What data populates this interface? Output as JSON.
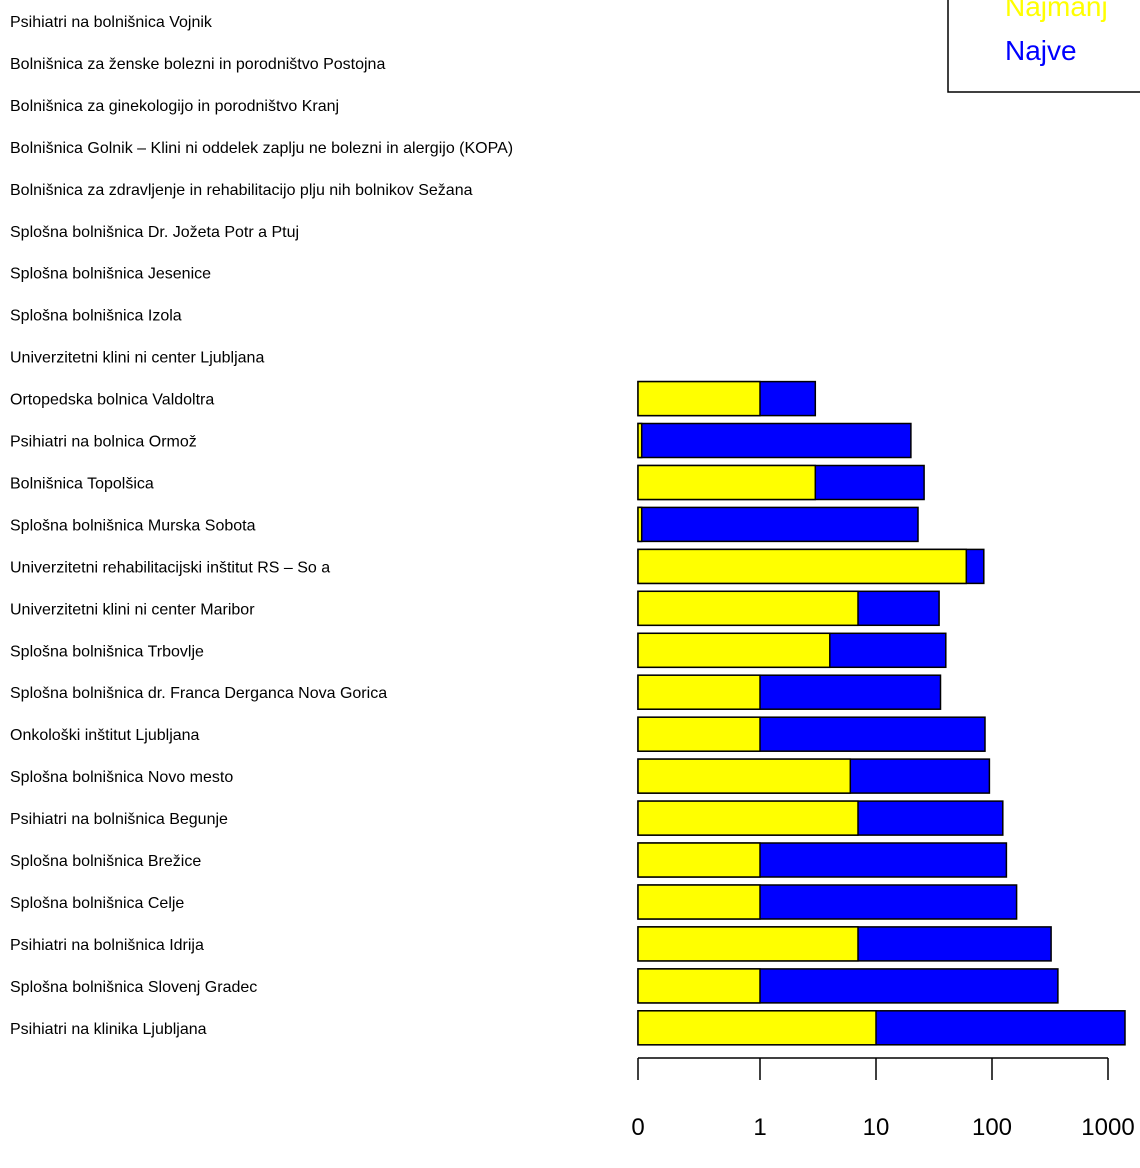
{
  "chart_data": {
    "type": "bar",
    "orientation": "horizontal",
    "stacked": true,
    "x_scale": "log (tick labels 0, 1, 10, 100, 1000)",
    "xlim": [
      0,
      1500
    ],
    "x_ticks": [
      "0",
      "1",
      "10",
      "100",
      "1000"
    ],
    "categories": [
      "Psihiatri na bolnišnica Vojnik",
      "Bolnišnica za ženske bolezni in porodništvo Postojna",
      "Bolnišnica za ginekologijo in porodništvo Kranj",
      "Bolnišnica Golnik – Klini ni oddelek zaplju ne bolezni in alergijo (KOPA)",
      "Bolnišnica  za zdravljenje in rehabilitacijo  plju nih bolnikov Sežana",
      "Splošna bolnišnica Dr. Jožeta Potr a Ptuj",
      "Splošna bolnišnica Jesenice",
      "Splošna bolnišnica Izola",
      "Univerzitetni klini ni center Ljubljana",
      "Ortopedska bolnica Valdoltra",
      "Psihiatri na bolnica Ormož",
      "Bolnišnica Topolšica",
      "Splošna bolnišnica Murska Sobota",
      "Univerzitetni rehabilitacijski inštitut RS – So a",
      "Univerzitetni klini ni center Maribor",
      "Splošna bolnišnica Trbovlje",
      "Splošna bolnišnica dr. Franca Derganca Nova Gorica",
      "Onkološki inštitut Ljubljana",
      "Splošna bolnišnica Novo mesto",
      "Psihiatri na bolnišnica Begunje",
      "Splošna bolnišnica Brežice",
      "Splošna bolnišnica Celje",
      "Psihiatri na bolnišnica Idrija",
      "Splošna bolnišnica Slovenj Gradec",
      "Psihiatri na klinika Ljubljana"
    ],
    "series": [
      {
        "name": "Najmanj",
        "color": "#ffff00",
        "values": [
          null,
          null,
          null,
          null,
          null,
          null,
          null,
          null,
          null,
          1,
          0.03,
          3,
          0.03,
          60,
          7,
          4,
          1,
          1,
          6,
          7,
          1,
          1,
          7,
          1,
          10
        ]
      },
      {
        "name": "Najve",
        "color": "#0000ff",
        "values": [
          null,
          null,
          null,
          null,
          null,
          null,
          null,
          null,
          null,
          3,
          20,
          26,
          23,
          85,
          35,
          40,
          36,
          87,
          95,
          124,
          133,
          163,
          323,
          370,
          1400
        ]
      }
    ],
    "legend": {
      "placement": "top-right",
      "entries": [
        "Najmanj",
        "Najve"
      ],
      "colors": [
        "#ffff00",
        "#0000ff"
      ]
    }
  }
}
